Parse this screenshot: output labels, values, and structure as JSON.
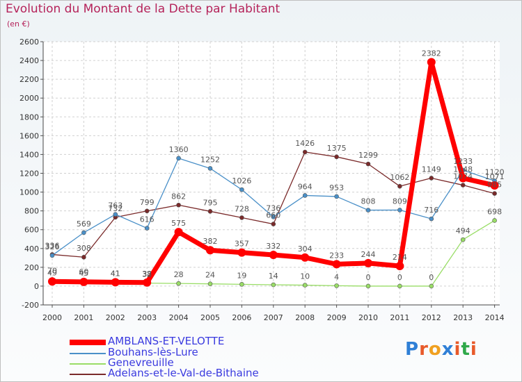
{
  "chart_data": {
    "type": "line",
    "title": "Evolution du Montant de la Dette par Habitant",
    "subtitle": "(en €)",
    "xlabel": "",
    "ylabel": "",
    "x": [
      "2000",
      "2001",
      "2002",
      "2003",
      "2004",
      "2005",
      "2006",
      "2007",
      "2008",
      "2009",
      "2010",
      "2011",
      "2012",
      "2013",
      "2014"
    ],
    "ylim": [
      -200,
      2600
    ],
    "yticks": [
      "-200",
      "0",
      "200",
      "400",
      "600",
      "800",
      "1000",
      "1200",
      "1400",
      "1600",
      "1800",
      "2000",
      "2200",
      "2400",
      "2600"
    ],
    "grid": true,
    "legend_position": "bottom-left",
    "series": [
      {
        "name": "AMBLANS-ET-VELOTTE",
        "color": "#ff0000",
        "values": [
          49,
          45,
          41,
          38,
          575,
          382,
          357,
          332,
          304,
          233,
          244,
          214,
          2382,
          1148,
          1071
        ],
        "labels": [
          "49",
          "45",
          "41",
          "38",
          "575",
          "382",
          "357",
          "332",
          "304",
          "233",
          "244",
          "214",
          "2382",
          "1148",
          "1071"
        ]
      },
      {
        "name": "Bouhans-lès-Lure",
        "color": "#4a90c8",
        "values": [
          326,
          569,
          763,
          616,
          1360,
          1252,
          1026,
          736,
          964,
          953,
          808,
          809,
          716,
          1233,
          1120
        ],
        "labels": [
          "326",
          "569",
          "763",
          "616",
          "1360",
          "1252",
          "1026",
          "736",
          "964",
          "953",
          "808",
          "809",
          "716",
          "1233",
          "1120"
        ]
      },
      {
        "name": "Genevreuille",
        "color": "#99dd66",
        "values": [
          70,
          60,
          41,
          32,
          28,
          24,
          19,
          14,
          10,
          4,
          0,
          0,
          0,
          494,
          698
        ],
        "labels": [
          "70",
          "60",
          "41",
          "32",
          "28",
          "24",
          "19",
          "14",
          "10",
          "4",
          "0",
          "0",
          "0",
          "494",
          "698"
        ]
      },
      {
        "name": "Adelans-et-le-Val-de-Bithaine",
        "color": "#7a2a2a",
        "values": [
          336,
          308,
          732,
          799,
          862,
          795,
          728,
          660,
          1426,
          1375,
          1299,
          1062,
          1149,
          1074,
          985
        ],
        "labels": [
          "336",
          "308",
          "732",
          "799",
          "862",
          "795",
          "728",
          "660",
          "1426",
          "1375",
          "1299",
          "1062",
          "1149",
          "1074",
          "985"
        ]
      }
    ]
  },
  "logo": {
    "text": "Proxiti"
  }
}
